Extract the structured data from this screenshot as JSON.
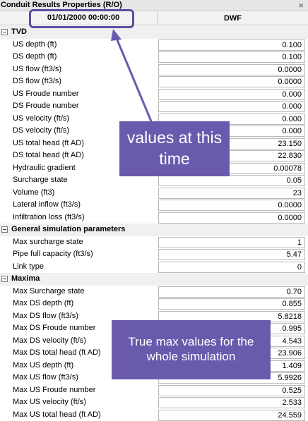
{
  "window": {
    "title": "Conduit Results Properties (R/O)",
    "close_icon": "close-icon"
  },
  "header": {
    "timestamp": "01/01/2000 00:00:00",
    "column": "DWF"
  },
  "groups": [
    {
      "name": "TVD",
      "props": [
        {
          "label": "US depth (ft)",
          "value": "0.100"
        },
        {
          "label": "DS depth (ft)",
          "value": "0.100"
        },
        {
          "label": "US flow (ft3/s)",
          "value": "0.0000"
        },
        {
          "label": "DS flow (ft3/s)",
          "value": "0.0000"
        },
        {
          "label": "US Froude number",
          "value": "0.000"
        },
        {
          "label": "DS Froude number",
          "value": "0.000"
        },
        {
          "label": "US velocity (ft/s)",
          "value": "0.000"
        },
        {
          "label": "DS velocity (ft/s)",
          "value": "0.000"
        },
        {
          "label": "US total head (ft AD)",
          "value": "23.150"
        },
        {
          "label": "DS total head (ft AD)",
          "value": "22.830"
        },
        {
          "label": "Hydraulic gradient",
          "value": "0.00078"
        },
        {
          "label": "Surcharge state",
          "value": "0.05"
        },
        {
          "label": "Volume (ft3)",
          "value": "23"
        },
        {
          "label": "Lateral inflow (ft3/s)",
          "value": "0.0000"
        },
        {
          "label": "Infiltration loss (ft3/s)",
          "value": "0.0000"
        }
      ]
    },
    {
      "name": "General simulation parameters",
      "props": [
        {
          "label": "Max surcharge state",
          "value": "1"
        },
        {
          "label": "Pipe full capacity (ft3/s)",
          "value": "5.47"
        },
        {
          "label": "Link type",
          "value": "0"
        }
      ]
    },
    {
      "name": "Maxima",
      "props": [
        {
          "label": "Max Surcharge state",
          "value": "0.70"
        },
        {
          "label": "Max DS depth (ft)",
          "value": "0.855"
        },
        {
          "label": "Max DS flow (ft3/s)",
          "value": "5.8218"
        },
        {
          "label": "Max DS Froude number",
          "value": "0.995"
        },
        {
          "label": "Max DS velocity (ft/s)",
          "value": "4.543"
        },
        {
          "label": "Max DS total head (ft AD)",
          "value": "23.906"
        },
        {
          "label": "Max US depth (ft)",
          "value": "1.409"
        },
        {
          "label": "Max US flow (ft3/s)",
          "value": "5.9926"
        },
        {
          "label": "Max US Froude number",
          "value": "0.525"
        },
        {
          "label": "Max US velocity (ft/s)",
          "value": "2.533"
        },
        {
          "label": "Max US total head (ft AD)",
          "value": "24.559"
        }
      ]
    }
  ],
  "annotations": {
    "time_note": "values at this time",
    "max_note": "True max values for the whole simulation",
    "accent_color": "#6a5aad",
    "outline_color": "#5b4da1"
  }
}
